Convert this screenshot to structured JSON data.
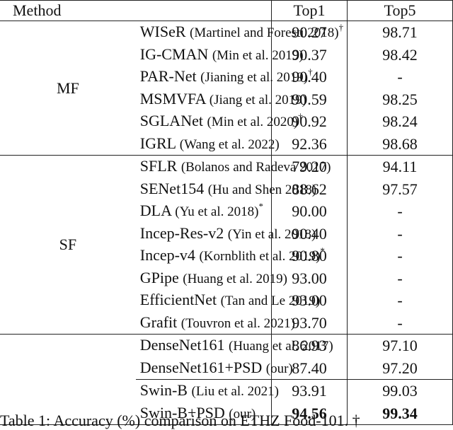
{
  "header": {
    "method": "Method",
    "top1": "Top1",
    "top5": "Top5"
  },
  "groups": [
    {
      "label": "MF",
      "rows": [
        {
          "model": "WISeR",
          "citation": "(Martinel and Foresti 2018)",
          "note": "†",
          "top1": "90.27",
          "top5": "98.71"
        },
        {
          "model": "IG-CMAN",
          "citation": "(Min et al. 2019)",
          "top1": "90.37",
          "top5": "98.42"
        },
        {
          "model": "PAR-Net",
          "citation": "(Jianing et al. 2019)",
          "note": "†",
          "top1": "90.40",
          "top5": "-"
        },
        {
          "model": "MSMVFA",
          "citation": "(Jiang et al. 2019)",
          "top1": "90.59",
          "top5": "98.25"
        },
        {
          "model": "SGLANet",
          "citation": "(Min et al. 2020)",
          "note": "†",
          "top1": "90.92",
          "top5": "98.24"
        },
        {
          "model": "IGRL",
          "citation": "(Wang et al. 2022)",
          "top1": "92.36",
          "top5": "98.68"
        }
      ]
    },
    {
      "label": "SF",
      "rows": [
        {
          "model": "SFLR",
          "citation": "(Bolanos and Radeva 2017)",
          "top1": "79.20",
          "top5": "94.11"
        },
        {
          "model": "SENet154",
          "citation": "(Hu and Shen 2018)",
          "top1": "88.62",
          "top5": "97.57"
        },
        {
          "model": "DLA",
          "citation": "(Yu et al. 2018)",
          "note": "*",
          "top1": "90.00",
          "top5": "-"
        },
        {
          "model": "Incep-Res-v2",
          "citation": "(Yin et al. 2018)",
          "top1": "90.40",
          "top5": "-"
        },
        {
          "model": "Incep-v4",
          "citation": "(Kornblith et al. 2019)",
          "note": "*",
          "top1": "90.80",
          "top5": "-"
        },
        {
          "model": "GPipe",
          "citation": "(Huang et al. 2019)",
          "top1": "93.00",
          "top5": "-"
        },
        {
          "model": "EfficientNet",
          "citation": "(Tan and Le 2019)",
          "top1": "93.00",
          "top5": "-"
        },
        {
          "model": "Grafit",
          "citation": "(Touvron et al. 2021)",
          "top1": "93.70",
          "top5": "-"
        }
      ]
    },
    {
      "rows": [
        {
          "model": "DenseNet161",
          "citation": "(Huang et al. 2017)",
          "top1": "86.93",
          "top5": "97.10"
        },
        {
          "model": "DenseNet161+PSD",
          "citation": "(our)",
          "top1": "87.40",
          "top5": "97.20"
        }
      ]
    },
    {
      "rows": [
        {
          "model": "Swin-B",
          "citation": "(Liu et al. 2021)",
          "top1": "93.91",
          "top5": "99.03"
        },
        {
          "model": "Swin-B+PSD",
          "citation": "(our)",
          "top1": "94.56",
          "top5": "99.34",
          "bold": true
        }
      ]
    }
  ],
  "caption": "Table 1: Accuracy (%) comparison on ETHZ Food-101. †"
}
